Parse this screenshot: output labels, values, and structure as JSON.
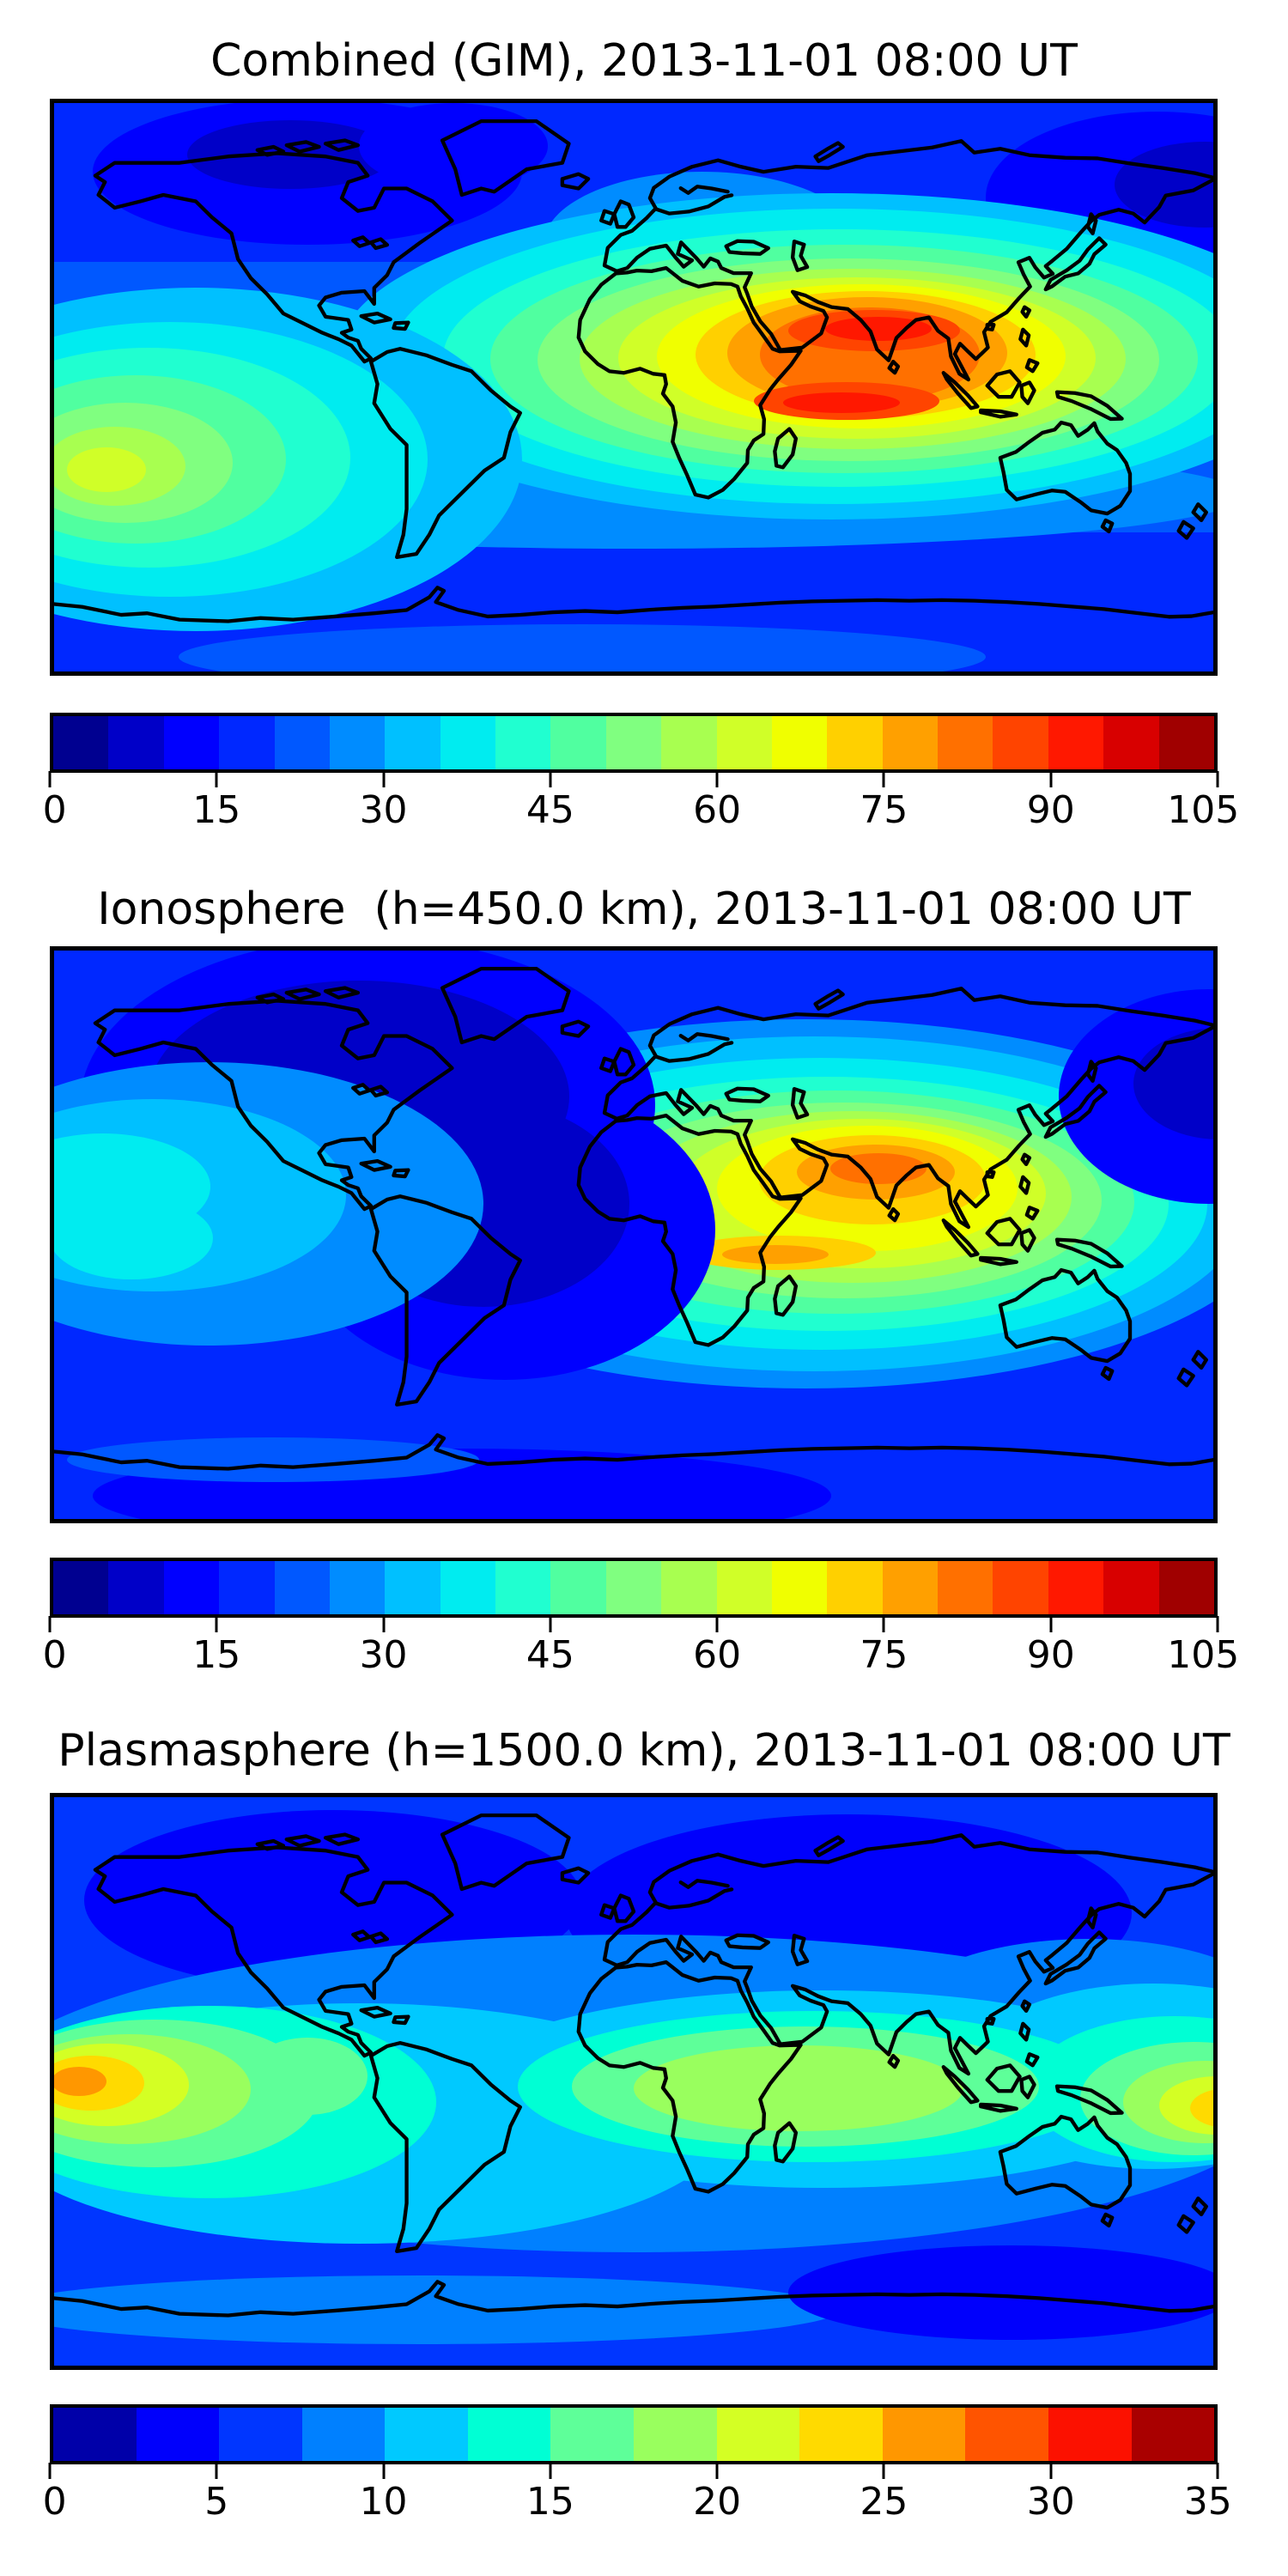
{
  "figure": {
    "background": "#ffffff",
    "font_color": "#000000"
  },
  "panels": [
    {
      "id": "combined",
      "title": "Combined (GIM), 2013-11-01 08:00 UT",
      "colorbar": {
        "min": 0,
        "max": 105,
        "tick_values": [
          0,
          15,
          30,
          45,
          60,
          75,
          90,
          105
        ],
        "ticks": [
          "0",
          "15",
          "30",
          "45",
          "60",
          "75",
          "90",
          "105"
        ],
        "n_segments": 21,
        "segment_colors": [
          "#000090",
          "#0000c8",
          "#0000ff",
          "#0028ff",
          "#0058ff",
          "#008cff",
          "#00c0ff",
          "#00ecf0",
          "#20ffd0",
          "#50ffa0",
          "#80ff80",
          "#a8ff50",
          "#d0ff28",
          "#f0ff00",
          "#ffd000",
          "#ffa000",
          "#ff7000",
          "#ff4400",
          "#ff1800",
          "#d80000",
          "#a00000"
        ]
      }
    },
    {
      "id": "ionosphere",
      "title": "Ionosphere  (h=450.0 km), 2013-11-01 08:00 UT",
      "colorbar": {
        "min": 0,
        "max": 105,
        "tick_values": [
          0,
          15,
          30,
          45,
          60,
          75,
          90,
          105
        ],
        "ticks": [
          "0",
          "15",
          "30",
          "45",
          "60",
          "75",
          "90",
          "105"
        ],
        "n_segments": 21,
        "segment_colors": [
          "#000090",
          "#0000c8",
          "#0000ff",
          "#0028ff",
          "#0058ff",
          "#008cff",
          "#00c0ff",
          "#00ecf0",
          "#20ffd0",
          "#50ffa0",
          "#80ff80",
          "#a8ff50",
          "#d0ff28",
          "#f0ff00",
          "#ffd000",
          "#ffa000",
          "#ff7000",
          "#ff4400",
          "#ff1800",
          "#d80000",
          "#a00000"
        ]
      }
    },
    {
      "id": "plasmasphere",
      "title": "Plasmasphere (h=1500.0 km), 2013-11-01 08:00 UT",
      "colorbar": {
        "min": 0,
        "max": 35,
        "tick_values": [
          0,
          5,
          10,
          15,
          20,
          25,
          30,
          35
        ],
        "ticks": [
          "0",
          "5",
          "10",
          "15",
          "20",
          "25",
          "30",
          "35"
        ],
        "n_segments": 14,
        "segment_colors": [
          "#0000a9",
          "#0000fc",
          "#0036ff",
          "#0080ff",
          "#00c9ff",
          "#00ffd4",
          "#5eff99",
          "#99ff5e",
          "#d4ff24",
          "#ffda00",
          "#ff9700",
          "#ff5400",
          "#fc1100",
          "#a90000"
        ]
      }
    }
  ],
  "chart_data": [
    {
      "type": "heatmap",
      "title": "Combined (GIM), 2013-11-01 08:00 UT",
      "projection": "equirectangular world map with coastlines",
      "extent": {
        "lon": [
          -180,
          180
        ],
        "lat": [
          -90,
          90
        ]
      },
      "colorbar_range": [
        0,
        105
      ],
      "contour_interval": 5,
      "legend_position": "bottom horizontal colorbar",
      "colormap": "jet",
      "features": [
        {
          "name": "equatorial-anomaly-north-crest",
          "lon": 76,
          "lat": 19,
          "value": 97
        },
        {
          "name": "equatorial-anomaly-south-crest",
          "lon": 64,
          "lat": -5,
          "value": 97
        },
        {
          "name": "southeast-asia-broad-maximum",
          "lon": 90,
          "lat": 10,
          "value": 85
        },
        {
          "name": "pacific-evening-enhancement",
          "lon": -162,
          "lat": -25,
          "value": 62
        },
        {
          "name": "north-america-arctic-minimum",
          "lon": -100,
          "lat": 67,
          "value": 8
        },
        {
          "name": "northeast-pacific-minimum",
          "lon": 175,
          "lat": 60,
          "value": 7
        },
        {
          "name": "southern-high-latitude-band",
          "lon": 0,
          "lat": -55,
          "value": 17
        }
      ]
    },
    {
      "type": "heatmap",
      "title": "Ionosphere  (h=450.0 km), 2013-11-01 08:00 UT",
      "projection": "equirectangular world map with coastlines",
      "extent": {
        "lon": [
          -180,
          180
        ],
        "lat": [
          -90,
          90
        ]
      },
      "colorbar_range": [
        0,
        105
      ],
      "contour_interval": 5,
      "legend_position": "bottom horizontal colorbar",
      "colormap": "jet",
      "features": [
        {
          "name": "south-asia-maximum",
          "lon": 77,
          "lat": 21,
          "value": 78
        },
        {
          "name": "sumatra-secondary-crest",
          "lon": 44,
          "lat": -4,
          "value": 73
        },
        {
          "name": "pacific-evening-enhancement",
          "lon": -165,
          "lat": -16,
          "value": 48
        },
        {
          "name": "americas-night-minimum",
          "lon": -80,
          "lat": 25,
          "value": 7
        },
        {
          "name": "northeast-pacific-minimum",
          "lon": 178,
          "lat": 55,
          "value": 6
        },
        {
          "name": "southern-ocean-band",
          "lon": -60,
          "lat": -68,
          "value": 12
        }
      ]
    },
    {
      "type": "heatmap",
      "title": "Plasmasphere (h=1500.0 km), 2013-11-01 08:00 UT",
      "projection": "equirectangular world map with coastlines",
      "extent": {
        "lon": [
          -180,
          180
        ],
        "lat": [
          -90,
          90
        ]
      },
      "colorbar_range": [
        0,
        35
      ],
      "contour_interval": 2.5,
      "legend_position": "bottom horizontal colorbar",
      "colormap": "jet",
      "features": [
        {
          "name": "east-pacific-maximum",
          "lon": -171,
          "lat": 0,
          "value": 27
        },
        {
          "name": "west-pacific-maximum",
          "lon": 180,
          "lat": -8,
          "value": 25
        },
        {
          "name": "indian-ocean-equatorial-band",
          "lon": 50,
          "lat": -1,
          "value": 19
        },
        {
          "name": "north-europe-russia-minimum",
          "lon": 65,
          "lat": 55,
          "value": 4
        },
        {
          "name": "arctic-canada-minimum",
          "lon": -95,
          "lat": 57,
          "value": 4
        },
        {
          "name": "south-atlantic-high-latitude-minimum",
          "lon": 115,
          "lat": -66,
          "value": 5
        }
      ]
    }
  ]
}
